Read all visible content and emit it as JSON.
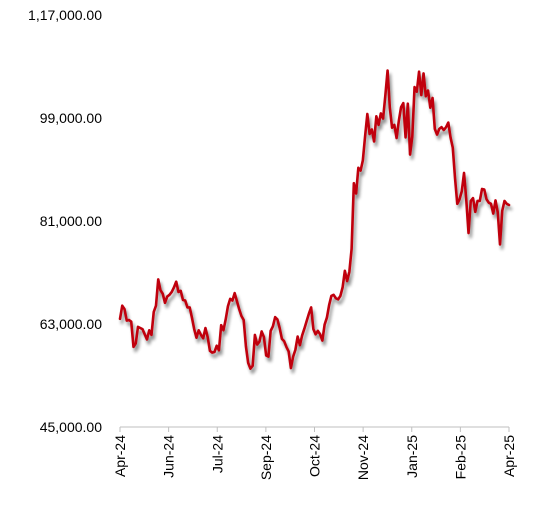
{
  "chart_data": {
    "type": "line",
    "title": "",
    "xlabel": "",
    "ylabel": "",
    "ylim": [
      45000,
      117000
    ],
    "y_ticks": [
      45000,
      63000,
      81000,
      99000,
      117000
    ],
    "y_tick_labels": [
      "45,000.00",
      "63,000.00",
      "81,000.00",
      "99,000.00",
      "1,17,000.00"
    ],
    "x_tick_labels": [
      "Apr-24",
      "Jun-24",
      "Jul-24",
      "Sep-24",
      "Oct-24",
      "Nov-24",
      "Jan-25",
      "Feb-25",
      "Apr-25"
    ],
    "grid": false,
    "legend": "none",
    "line_color": "#c0000b",
    "series": [
      {
        "values": [
          63900,
          66200,
          65600,
          63600,
          63700,
          63400,
          59000,
          59600,
          62500,
          62300,
          62100,
          61200,
          60300,
          61900,
          61100,
          65100,
          66200,
          70800,
          68900,
          68300,
          66700,
          67800,
          68100,
          68600,
          69400,
          70400,
          68600,
          68800,
          67200,
          67100,
          65900,
          65900,
          64100,
          62100,
          60600,
          61900,
          61100,
          60500,
          62300,
          60700,
          58300,
          58000,
          58100,
          59200,
          58400,
          62800,
          61900,
          63800,
          66100,
          67400,
          67100,
          68400,
          67000,
          65600,
          64400,
          63700,
          59100,
          56200,
          55200,
          55700,
          61100,
          59400,
          59900,
          61700,
          60700,
          57500,
          57300,
          61800,
          62600,
          64200,
          63800,
          62300,
          60400,
          60000,
          59000,
          58200,
          55300,
          57300,
          58500,
          60800,
          59300,
          61000,
          62200,
          63500,
          64800,
          65900,
          62100,
          61200,
          61800,
          61200,
          60100,
          62900,
          64100,
          66300,
          67900,
          68100,
          67500,
          67300,
          67900,
          69400,
          72300,
          70500,
          72100,
          76100,
          87600,
          85800,
          90300,
          89800,
          91600,
          95800,
          99700,
          96200,
          97000,
          94900,
          99300,
          97800,
          99800,
          98900,
          102900,
          107300,
          100800,
          97300,
          97800,
          95500,
          98500,
          100900,
          101600,
          95600,
          101500,
          92600,
          95800,
          104400,
          103600,
          107100,
          103000,
          106800,
          102800,
          103800,
          100800,
          102500,
          97100,
          96100,
          97100,
          97400,
          96900,
          97400,
          98200,
          95600,
          93800,
          88500,
          84000,
          84800,
          86200,
          89400,
          84700,
          78900,
          84500,
          85000,
          82600,
          84500,
          84500,
          86600,
          86500,
          84800,
          84200,
          84000,
          82300,
          84600,
          82500,
          76900,
          82800,
          84500,
          84000,
          83800
        ]
      }
    ]
  }
}
